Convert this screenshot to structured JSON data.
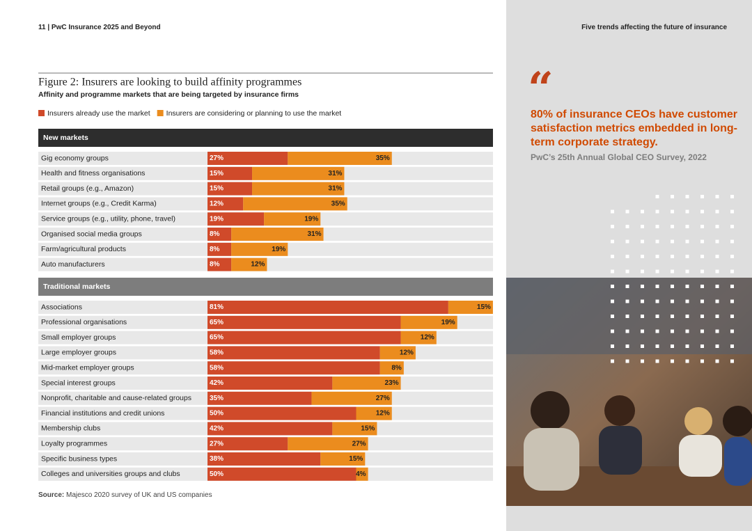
{
  "header": {
    "page": "11  |  PwC Insurance 2025 and Beyond",
    "section": "Five trends affecting the future of insurance"
  },
  "chart_data": {
    "type": "bar",
    "orientation": "horizontal",
    "stacked": true,
    "title": "Figure 2: Insurers are looking to build affinity programmes",
    "subtitle": "Affinity and programme markets that are being targeted by insurance firms",
    "sections": [
      {
        "name": "New markets",
        "categories": [
          "Gig economy groups",
          "Health and fitness organisations",
          "Retail groups (e.g., Amazon)",
          "Internet groups (e.g., Credit Karma)",
          "Service groups (e.g., utility, phone, travel)",
          "Organised social media groups",
          "Farm/agricultural products",
          "Auto manufacturers"
        ]
      },
      {
        "name": "Traditional markets",
        "categories": [
          "Associations",
          "Professional organisations",
          "Small employer groups",
          "Large employer groups",
          "Mid-market employer groups",
          "Special interest groups",
          "Nonprofit, charitable and cause-related groups",
          "Financial institutions and credit unions",
          "Membership clubs",
          "Loyalty programmes",
          "Specific business types",
          "Colleges and universities groups and clubs"
        ]
      }
    ],
    "series": [
      {
        "name": "Insurers already use the market",
        "color": "#d04a2a",
        "values": [
          27,
          15,
          15,
          12,
          19,
          8,
          8,
          8,
          81,
          65,
          65,
          58,
          58,
          42,
          35,
          50,
          42,
          27,
          38,
          50
        ],
        "value_labels": [
          "27%",
          "15%",
          "15%",
          "12%",
          "19%",
          "8%",
          "8%",
          "8%",
          "81%",
          "65%",
          "65%",
          "58%",
          "58%",
          "42%",
          "35%",
          "50%",
          "42%",
          "27%",
          "38%",
          "50%"
        ]
      },
      {
        "name": "Insurers are considering or planning to use the market",
        "color": "#eb8c1e",
        "values": [
          35,
          31,
          31,
          35,
          19,
          31,
          19,
          12,
          15,
          19,
          12,
          12,
          8,
          23,
          27,
          12,
          15,
          27,
          15,
          4
        ],
        "value_labels": [
          "35%",
          "31%",
          "31%",
          "35%",
          "19%",
          "31%",
          "19%",
          "12%",
          "15%",
          "19%",
          "12%",
          "12%",
          "8%",
          "23%",
          "27%",
          "12%",
          "15%",
          "27%",
          "15%",
          "4%"
        ]
      }
    ]
  },
  "source": {
    "label": "Source:",
    "text": "Majesco 2020 survey of UK and US companies"
  },
  "quote": {
    "mark": "“",
    "text": "80% of insurance CEOs have customer satisfaction metrics embedded in long-term corporate strategy.",
    "attribution": "PwC’s 25th Annual Global CEO Survey, 2022"
  }
}
